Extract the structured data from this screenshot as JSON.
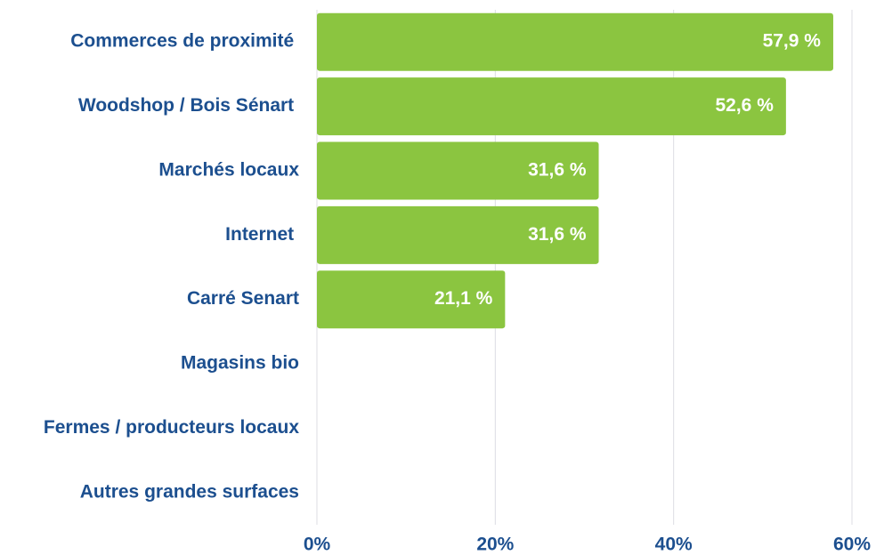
{
  "chart_data": {
    "type": "hbar",
    "categories": [
      "Commerces de proximité ",
      "Woodshop / Bois Sénart ",
      "Marchés locaux",
      "Internet ",
      "Carré Senart",
      "Magasins bio",
      "Fermes / producteurs locaux",
      "Autres grandes surfaces"
    ],
    "values": [
      57.9,
      52.6,
      31.6,
      31.6,
      21.1,
      0,
      0,
      0
    ],
    "value_labels": [
      "57,9 %",
      "52,6 %",
      "31,6 %",
      "31,6 %",
      "21,1 %",
      null,
      null,
      null
    ],
    "color": "#8bc540",
    "xlim": [
      0,
      60
    ],
    "xticks": [
      {
        "value": 0,
        "label": "0%"
      },
      {
        "value": 20,
        "label": "20%"
      },
      {
        "value": 40,
        "label": "40%"
      },
      {
        "value": 60,
        "label": "60%"
      }
    ],
    "grid": true
  }
}
